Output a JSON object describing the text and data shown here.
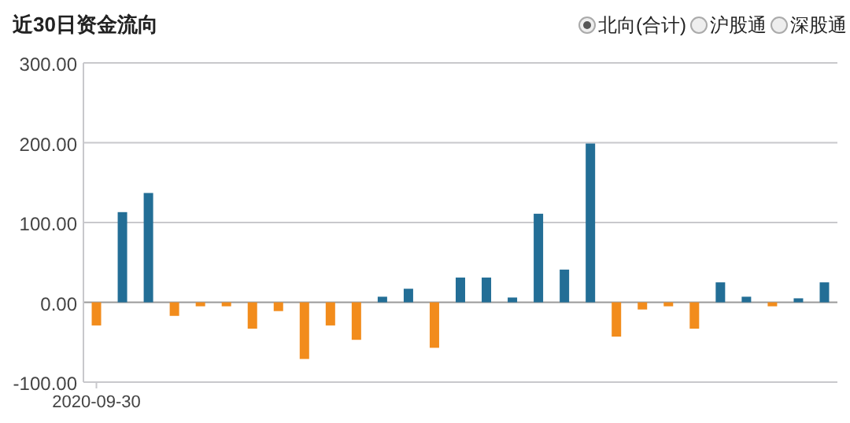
{
  "chart_data": {
    "type": "bar",
    "title": "近30日资金流向",
    "annotations": [
      "北向(合计)",
      "沪股通",
      "深股通"
    ],
    "categories": [
      "2020-09-30",
      null,
      null,
      null,
      null,
      null,
      null,
      null,
      null,
      null,
      null,
      null,
      null,
      null,
      null,
      null,
      null,
      null,
      null,
      null,
      null,
      null,
      null,
      null,
      null,
      null,
      null,
      null,
      null
    ],
    "values": [
      -29,
      113,
      137,
      -17,
      -5,
      -5,
      -33,
      -11,
      -71,
      -29,
      -47,
      7,
      17,
      -57,
      31,
      31,
      6,
      111,
      41,
      199,
      -43,
      -9,
      -5,
      -33,
      25,
      7,
      -5,
      5,
      25
    ],
    "colors": [
      "#f28c1c",
      "#236e96",
      "#236e96",
      "#f28c1c",
      "#f28c1c",
      "#f28c1c",
      "#f28c1c",
      "#f28c1c",
      "#f28c1c",
      "#f28c1c",
      "#f28c1c",
      "#236e96",
      "#236e96",
      "#f28c1c",
      "#236e96",
      "#236e96",
      "#236e96",
      "#236e96",
      "#236e96",
      "#236e96",
      "#f28c1c",
      "#f28c1c",
      "#f28c1c",
      "#f28c1c",
      "#236e96",
      "#236e96",
      "#f28c1c",
      "#236e96",
      "#236e96"
    ],
    "ylim": [
      -100,
      300
    ],
    "yticks": [
      {
        "value": -100,
        "label": "-100.00"
      },
      {
        "value": 0,
        "label": "0.00"
      },
      {
        "value": 100,
        "label": "100.00"
      },
      {
        "value": 200,
        "label": "200.00"
      },
      {
        "value": 300,
        "label": "300.00"
      }
    ],
    "grid": "y"
  }
}
